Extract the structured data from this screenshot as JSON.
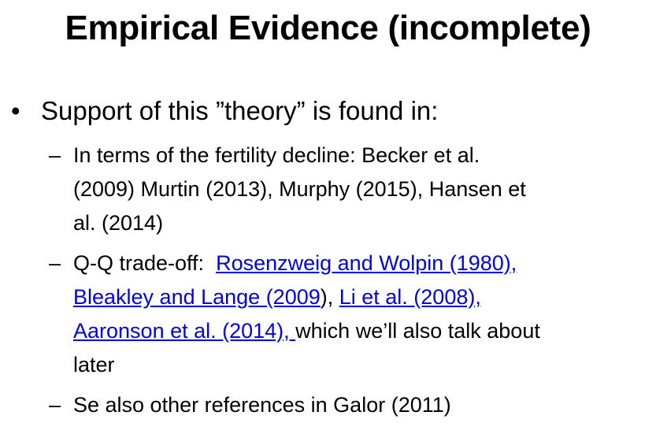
{
  "title": "Empirical Evidence (incomplete)",
  "bullet": {
    "marker": "•",
    "text": "Support of this ”theory” is found in:"
  },
  "subitems": [
    {
      "marker": "–",
      "lines": [
        "In terms of the fertility decline: Becker et al.",
        "(2009) Murtin (2013), Murphy (2015), Hansen et",
        "al. (2014)"
      ]
    },
    {
      "marker": "–",
      "prefix": "Q-Q trade-off:  ",
      "links": [
        "Rosenzweig and Wolpin (1980),",
        "Bleakley and Lange (2009",
        "Li et al. (2008),",
        "Aaronson et al. (2014), "
      ],
      "after_link_2": "), ",
      "suffix": "which we’ll also talk about",
      "last_line": "later"
    },
    {
      "marker": "–",
      "lines": [
        "Se also other references in Galor (2011)"
      ]
    }
  ]
}
